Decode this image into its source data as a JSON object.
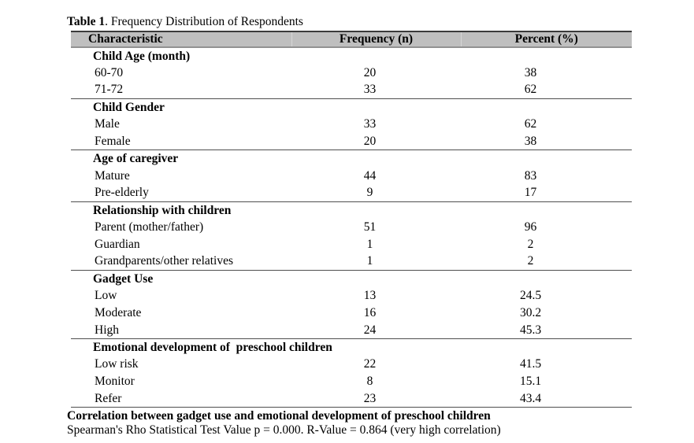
{
  "caption": {
    "label": "Table 1",
    "text": ". Frequency Distribution of Respondents"
  },
  "table": {
    "headers": [
      "Characteristic",
      "Frequency (n)",
      "Percent (%)"
    ],
    "sections": [
      {
        "name": "Child Age (month)",
        "rows": [
          {
            "label": "60-70",
            "frequency": "20",
            "percent": "38"
          },
          {
            "label": "71-72",
            "frequency": "33",
            "percent": "62"
          }
        ]
      },
      {
        "name": "Child Gender",
        "rows": [
          {
            "label": "Male",
            "frequency": "33",
            "percent": "62"
          },
          {
            "label": "Female",
            "frequency": "20",
            "percent": "38"
          }
        ]
      },
      {
        "name": "Age of caregiver",
        "rows": [
          {
            "label": "Mature",
            "frequency": "44",
            "percent": "83"
          },
          {
            "label": "Pre-elderly",
            "frequency": "9",
            "percent": "17"
          }
        ]
      },
      {
        "name": "Relationship with children",
        "rows": [
          {
            "label": "Parent (mother/father)",
            "frequency": "51",
            "percent": "96"
          },
          {
            "label": "Guardian",
            "frequency": "1",
            "percent": "2"
          },
          {
            "label": "Grandparents/other relatives",
            "frequency": "1",
            "percent": "2"
          }
        ]
      },
      {
        "name": "Gadget Use",
        "rows": [
          {
            "label": "Low",
            "frequency": "13",
            "percent": "24.5"
          },
          {
            "label": "Moderate",
            "frequency": "16",
            "percent": "30.2"
          },
          {
            "label": "High",
            "frequency": "24",
            "percent": "45.3"
          }
        ]
      },
      {
        "name": "Emotional development of  preschool children",
        "rows": [
          {
            "label": "Low risk",
            "frequency": "22",
            "percent": "41.5"
          },
          {
            "label": "Monitor",
            "frequency": "8",
            "percent": "15.1"
          },
          {
            "label": "Refer",
            "frequency": "23",
            "percent": "43.4"
          }
        ]
      }
    ]
  },
  "footer": {
    "bold_line": "Correlation between gadget use and emotional development of preschool children",
    "normal_line": "Spearman's Rho Statistical Test Value p = 0.000. R-Value = 0.864 (very high correlation)"
  },
  "colors": {
    "header_bg": "#bfbfbf",
    "header_top_border": "#3b3b3b",
    "header_bottom_border": "#929292",
    "section_divider": "#4f4f4f",
    "text": "#000000"
  }
}
